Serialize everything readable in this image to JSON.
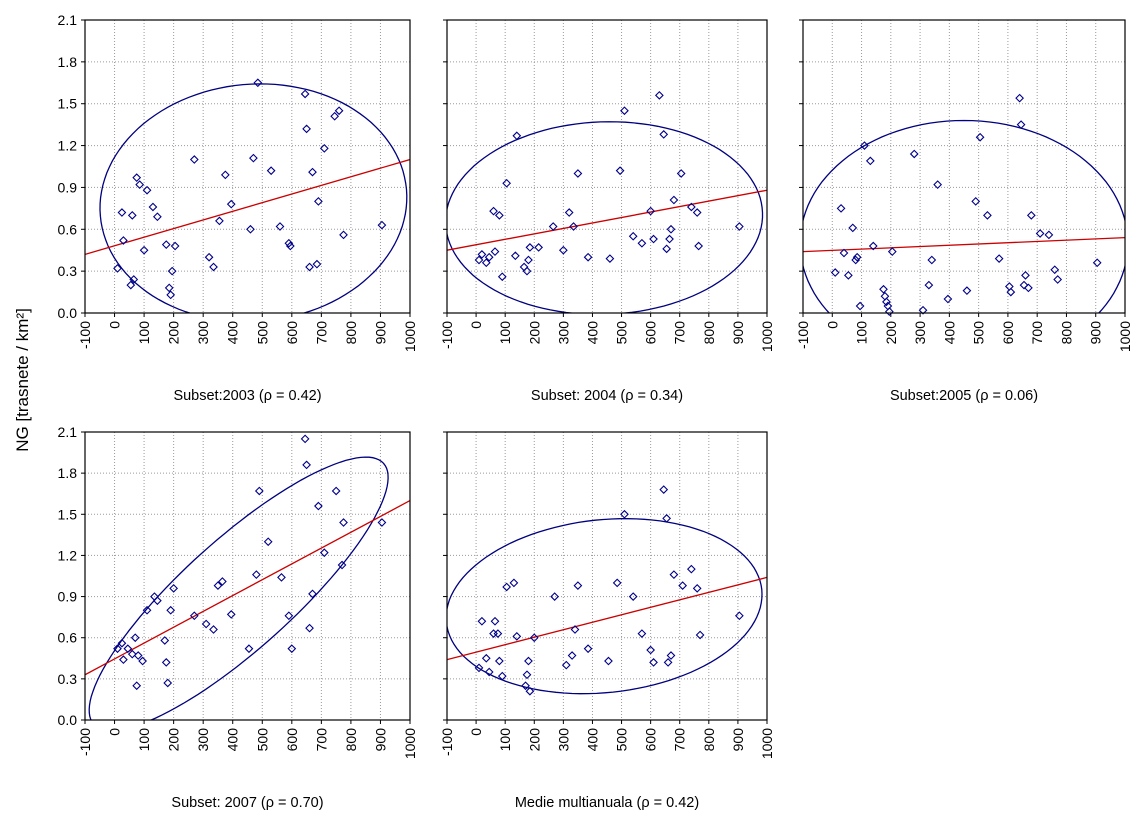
{
  "figure": {
    "ylabel": "NG [trasnete / km²]",
    "colors": {
      "points": "#00008b",
      "regression": "#cc0000",
      "ellipse": "#000080",
      "grid": "#9a9a9a"
    }
  },
  "chart_data": [
    {
      "type": "scatter",
      "caption": "Subset:2003 (ρ = 0.42)",
      "xlim": [
        -100,
        1000
      ],
      "ylim": [
        0,
        2.1
      ],
      "xticks": [
        "-100",
        "0",
        "100",
        "200",
        "300",
        "400",
        "500",
        "600",
        "700",
        "800",
        "900",
        "1000"
      ],
      "yticks": [
        "0.0",
        "0.3",
        "0.6",
        "0.9",
        "1.2",
        "1.5",
        "1.8",
        "2.1"
      ],
      "grid": true,
      "regression": [
        [
          -100,
          0.42
        ],
        [
          1000,
          1.1
        ]
      ],
      "ellipse": {
        "cx": 470,
        "cy": 0.79,
        "rx": 520,
        "ry": 0.85,
        "rot_deg": -5
      },
      "points": [
        [
          10,
          0.32
        ],
        [
          25,
          0.72
        ],
        [
          30,
          0.52
        ],
        [
          55,
          0.2
        ],
        [
          60,
          0.7
        ],
        [
          65,
          0.24
        ],
        [
          75,
          0.97
        ],
        [
          85,
          0.92
        ],
        [
          100,
          0.45
        ],
        [
          110,
          0.88
        ],
        [
          130,
          0.76
        ],
        [
          145,
          0.69
        ],
        [
          175,
          0.49
        ],
        [
          185,
          0.18
        ],
        [
          190,
          0.13
        ],
        [
          195,
          0.3
        ],
        [
          205,
          0.48
        ],
        [
          270,
          1.1
        ],
        [
          320,
          0.4
        ],
        [
          335,
          0.33
        ],
        [
          355,
          0.66
        ],
        [
          375,
          0.99
        ],
        [
          395,
          0.78
        ],
        [
          460,
          0.6
        ],
        [
          470,
          1.11
        ],
        [
          485,
          1.65
        ],
        [
          530,
          1.02
        ],
        [
          560,
          0.62
        ],
        [
          590,
          0.5
        ],
        [
          595,
          0.48
        ],
        [
          645,
          1.57
        ],
        [
          650,
          1.32
        ],
        [
          660,
          0.33
        ],
        [
          670,
          1.01
        ],
        [
          685,
          0.35
        ],
        [
          690,
          0.8
        ],
        [
          710,
          1.18
        ],
        [
          745,
          1.41
        ],
        [
          760,
          1.45
        ],
        [
          775,
          0.56
        ],
        [
          905,
          0.63
        ]
      ]
    },
    {
      "type": "scatter",
      "caption": "Subset: 2004 (ρ = 0.34)",
      "xlim": [
        -100,
        1000
      ],
      "ylim": [
        0,
        2.1
      ],
      "xticks": [
        "-100",
        "0",
        "100",
        "200",
        "300",
        "400",
        "500",
        "600",
        "700",
        "800",
        "900",
        "1000"
      ],
      "yticks": [],
      "grid": true,
      "regression": [
        [
          -100,
          0.45
        ],
        [
          1000,
          0.88
        ]
      ],
      "ellipse": {
        "cx": 440,
        "cy": 0.68,
        "rx": 545,
        "ry": 0.69,
        "rot_deg": -2
      },
      "points": [
        [
          10,
          0.38
        ],
        [
          20,
          0.42
        ],
        [
          35,
          0.36
        ],
        [
          45,
          0.4
        ],
        [
          60,
          0.73
        ],
        [
          65,
          0.44
        ],
        [
          80,
          0.7
        ],
        [
          90,
          0.26
        ],
        [
          105,
          0.93
        ],
        [
          135,
          0.41
        ],
        [
          140,
          1.27
        ],
        [
          165,
          0.33
        ],
        [
          175,
          0.3
        ],
        [
          180,
          0.38
        ],
        [
          185,
          0.47
        ],
        [
          215,
          0.47
        ],
        [
          265,
          0.62
        ],
        [
          300,
          0.45
        ],
        [
          320,
          0.72
        ],
        [
          335,
          0.62
        ],
        [
          350,
          1.0
        ],
        [
          385,
          0.4
        ],
        [
          460,
          0.39
        ],
        [
          495,
          1.02
        ],
        [
          510,
          1.45
        ],
        [
          540,
          0.55
        ],
        [
          570,
          0.5
        ],
        [
          600,
          0.73
        ],
        [
          610,
          0.53
        ],
        [
          630,
          1.56
        ],
        [
          645,
          1.28
        ],
        [
          655,
          0.46
        ],
        [
          665,
          0.53
        ],
        [
          670,
          0.6
        ],
        [
          680,
          0.81
        ],
        [
          705,
          1.0
        ],
        [
          740,
          0.76
        ],
        [
          760,
          0.72
        ],
        [
          765,
          0.48
        ],
        [
          905,
          0.62
        ]
      ]
    },
    {
      "type": "scatter",
      "caption": "Subset:2005 (ρ = 0.06)",
      "xlim": [
        -100,
        1000
      ],
      "ylim": [
        0,
        2.1
      ],
      "xticks": [
        "-100",
        "0",
        "100",
        "200",
        "300",
        "400",
        "500",
        "600",
        "700",
        "800",
        "900",
        "1000"
      ],
      "yticks": [],
      "grid": true,
      "regression": [
        [
          -100,
          0.44
        ],
        [
          1000,
          0.54
        ]
      ],
      "ellipse": {
        "cx": 450,
        "cy": 0.5,
        "rx": 560,
        "ry": 0.88,
        "rot_deg": 0
      },
      "points": [
        [
          10,
          0.29
        ],
        [
          30,
          0.75
        ],
        [
          40,
          0.43
        ],
        [
          55,
          0.27
        ],
        [
          70,
          0.61
        ],
        [
          80,
          0.38
        ],
        [
          85,
          0.4
        ],
        [
          95,
          0.05
        ],
        [
          110,
          1.2
        ],
        [
          130,
          1.09
        ],
        [
          140,
          0.48
        ],
        [
          175,
          0.17
        ],
        [
          180,
          0.12
        ],
        [
          185,
          0.08
        ],
        [
          190,
          0.05
        ],
        [
          195,
          0.01
        ],
        [
          205,
          0.44
        ],
        [
          280,
          1.14
        ],
        [
          310,
          0.02
        ],
        [
          330,
          0.2
        ],
        [
          340,
          0.38
        ],
        [
          360,
          0.92
        ],
        [
          395,
          0.1
        ],
        [
          460,
          0.16
        ],
        [
          490,
          0.8
        ],
        [
          505,
          1.26
        ],
        [
          530,
          0.7
        ],
        [
          570,
          0.39
        ],
        [
          605,
          0.19
        ],
        [
          610,
          0.15
        ],
        [
          640,
          1.54
        ],
        [
          645,
          1.35
        ],
        [
          655,
          0.2
        ],
        [
          660,
          0.27
        ],
        [
          670,
          0.18
        ],
        [
          680,
          0.7
        ],
        [
          710,
          0.57
        ],
        [
          740,
          0.56
        ],
        [
          760,
          0.31
        ],
        [
          770,
          0.24
        ],
        [
          905,
          0.36
        ]
      ]
    },
    {
      "type": "scatter",
      "caption": "Subset: 2007 (ρ = 0.70)",
      "xlim": [
        -100,
        1000
      ],
      "ylim": [
        0,
        2.1
      ],
      "xticks": [
        "-100",
        "0",
        "100",
        "200",
        "300",
        "400",
        "500",
        "600",
        "700",
        "800",
        "900",
        "1000"
      ],
      "yticks": [
        "0.0",
        "0.3",
        "0.6",
        "0.9",
        "1.2",
        "1.5",
        "1.8",
        "2.1"
      ],
      "grid": true,
      "regression": [
        [
          -100,
          0.33
        ],
        [
          1000,
          1.6
        ]
      ],
      "ellipse": {
        "cx": 420,
        "cy": 0.92,
        "rx": 660,
        "ry": 0.4,
        "rot_deg": -42
      },
      "points": [
        [
          10,
          0.52
        ],
        [
          25,
          0.56
        ],
        [
          30,
          0.44
        ],
        [
          45,
          0.52
        ],
        [
          60,
          0.48
        ],
        [
          70,
          0.6
        ],
        [
          75,
          0.25
        ],
        [
          80,
          0.47
        ],
        [
          95,
          0.43
        ],
        [
          110,
          0.8
        ],
        [
          135,
          0.9
        ],
        [
          145,
          0.87
        ],
        [
          170,
          0.58
        ],
        [
          175,
          0.42
        ],
        [
          180,
          0.27
        ],
        [
          190,
          0.8
        ],
        [
          200,
          0.96
        ],
        [
          270,
          0.76
        ],
        [
          310,
          0.7
        ],
        [
          335,
          0.66
        ],
        [
          350,
          0.98
        ],
        [
          365,
          1.01
        ],
        [
          395,
          0.77
        ],
        [
          455,
          0.52
        ],
        [
          480,
          1.06
        ],
        [
          490,
          1.67
        ],
        [
          520,
          1.3
        ],
        [
          565,
          1.04
        ],
        [
          590,
          0.76
        ],
        [
          600,
          0.52
        ],
        [
          645,
          2.05
        ],
        [
          650,
          1.86
        ],
        [
          660,
          0.67
        ],
        [
          670,
          0.92
        ],
        [
          690,
          1.56
        ],
        [
          710,
          1.22
        ],
        [
          750,
          1.67
        ],
        [
          770,
          1.13
        ],
        [
          775,
          1.44
        ],
        [
          905,
          1.44
        ]
      ]
    },
    {
      "type": "scatter",
      "caption": "Medie multianuala (ρ = 0.42)",
      "xlim": [
        -100,
        1000
      ],
      "ylim": [
        0,
        2.1
      ],
      "xticks": [
        "-100",
        "0",
        "100",
        "200",
        "300",
        "400",
        "500",
        "600",
        "700",
        "800",
        "900",
        "1000"
      ],
      "yticks": [],
      "grid": true,
      "regression": [
        [
          -100,
          0.44
        ],
        [
          1000,
          1.04
        ]
      ],
      "ellipse": {
        "cx": 440,
        "cy": 0.83,
        "rx": 545,
        "ry": 0.63,
        "rot_deg": -6
      },
      "points": [
        [
          10,
          0.38
        ],
        [
          20,
          0.72
        ],
        [
          35,
          0.45
        ],
        [
          45,
          0.35
        ],
        [
          60,
          0.63
        ],
        [
          65,
          0.72
        ],
        [
          75,
          0.63
        ],
        [
          80,
          0.43
        ],
        [
          90,
          0.32
        ],
        [
          105,
          0.97
        ],
        [
          130,
          1.0
        ],
        [
          140,
          0.61
        ],
        [
          170,
          0.25
        ],
        [
          175,
          0.33
        ],
        [
          180,
          0.43
        ],
        [
          185,
          0.21
        ],
        [
          200,
          0.6
        ],
        [
          270,
          0.9
        ],
        [
          310,
          0.4
        ],
        [
          330,
          0.47
        ],
        [
          340,
          0.66
        ],
        [
          350,
          0.98
        ],
        [
          385,
          0.52
        ],
        [
          455,
          0.43
        ],
        [
          485,
          1.0
        ],
        [
          510,
          1.5
        ],
        [
          540,
          0.9
        ],
        [
          570,
          0.63
        ],
        [
          600,
          0.51
        ],
        [
          610,
          0.42
        ],
        [
          645,
          1.68
        ],
        [
          655,
          1.47
        ],
        [
          660,
          0.42
        ],
        [
          670,
          0.47
        ],
        [
          680,
          1.06
        ],
        [
          710,
          0.98
        ],
        [
          740,
          1.1
        ],
        [
          760,
          0.96
        ],
        [
          770,
          0.62
        ],
        [
          905,
          0.76
        ]
      ]
    }
  ]
}
